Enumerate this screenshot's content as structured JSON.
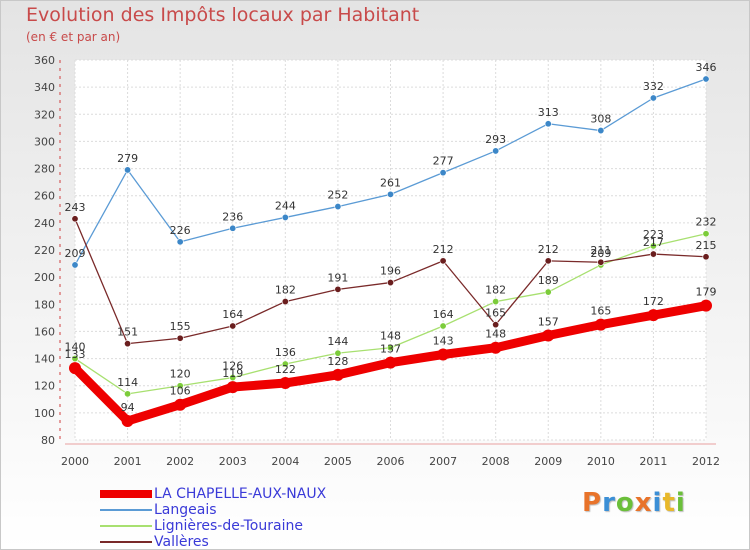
{
  "header": {
    "title": "Evolution des Impôts locaux par Habitant",
    "subtitle": "(en € et par an)"
  },
  "logo": {
    "text": "Proxiti"
  },
  "chart_data": {
    "type": "line",
    "title": "Evolution des Impôts locaux par Habitant",
    "subtitle": "(en € et par an)",
    "xlabel": "",
    "ylabel": "",
    "ylim": [
      80,
      360
    ],
    "yticks": [
      80,
      100,
      120,
      140,
      160,
      180,
      200,
      220,
      240,
      260,
      280,
      300,
      320,
      340,
      360
    ],
    "grid": true,
    "legend_position": "bottom-left",
    "x": [
      "2000",
      "2001",
      "2002",
      "2003",
      "2004",
      "2005",
      "2006",
      "2007",
      "2008",
      "2009",
      "2010",
      "2011",
      "2012"
    ],
    "series": [
      {
        "name": "Langeais",
        "color": "#5b9bd5",
        "marker_color": "#3c87c8",
        "width": "thin",
        "values": [
          209,
          279,
          226,
          236,
          244,
          252,
          261,
          277,
          293,
          313,
          308,
          332,
          346
        ]
      },
      {
        "name": "Lignières-de-Touraine",
        "color": "#a8e070",
        "marker_color": "#7ccc3a",
        "width": "thin",
        "values": [
          140,
          114,
          120,
          126,
          136,
          144,
          148,
          164,
          182,
          189,
          209,
          223,
          232
        ]
      },
      {
        "name": "Vallères",
        "color": "#7a2a2a",
        "marker_color": "#6a1e1e",
        "width": "thin",
        "values": [
          243,
          151,
          155,
          164,
          182,
          191,
          196,
          212,
          165,
          212,
          211,
          217,
          215
        ]
      },
      {
        "name": "LA CHAPELLE-AUX-NAUX",
        "color": "#ee0000",
        "marker_color": "#ee0000",
        "width": "thick",
        "values": [
          133,
          94,
          106,
          119,
          122,
          128,
          137,
          143,
          148,
          157,
          165,
          172,
          179
        ]
      }
    ],
    "legend_order": [
      "LA CHAPELLE-AUX-NAUX",
      "Langeais",
      "Lignières-de-Touraine",
      "Vallères"
    ]
  }
}
